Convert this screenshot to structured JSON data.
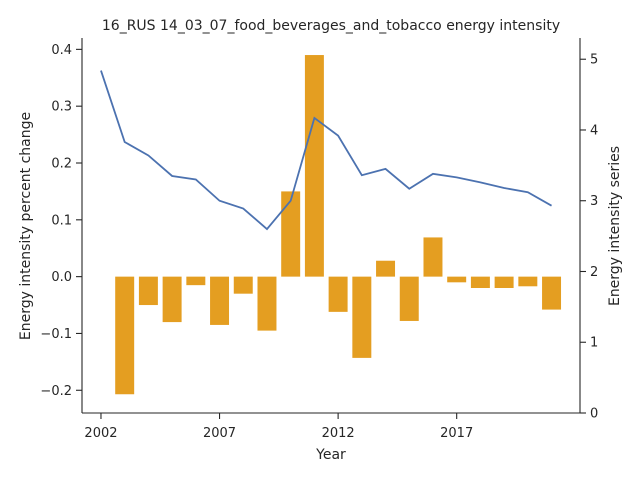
{
  "chart_data": {
    "type": "bar+line",
    "title": "16_RUS 14_03_07_food_beverages_and_tobacco energy intensity",
    "xlabel": "Year",
    "ylabel_left": "Energy intensity percent change",
    "ylabel_right": "Energy intensity series",
    "xlim": [
      2001.2,
      2022.2
    ],
    "ylim_left": [
      -0.24,
      0.42
    ],
    "ylim_right": [
      0,
      5.3
    ],
    "x_ticks": [
      2002,
      2007,
      2012,
      2017
    ],
    "y_ticks_left": [
      -0.2,
      -0.1,
      0.0,
      0.1,
      0.2,
      0.3,
      0.4
    ],
    "y_tick_labels_left": [
      "−0.2",
      "−0.1",
      "0.0",
      "0.1",
      "0.2",
      "0.3",
      "0.4"
    ],
    "y_ticks_right": [
      0,
      1,
      2,
      3,
      4,
      5
    ],
    "y_tick_labels_right": [
      "0",
      "1",
      "2",
      "3",
      "4",
      "5"
    ],
    "grid": false,
    "bar_series": {
      "axis": "left",
      "color": "#e49e21",
      "x": [
        2003,
        2004,
        2005,
        2006,
        2007,
        2008,
        2009,
        2010,
        2011,
        2012,
        2013,
        2014,
        2015,
        2016,
        2017,
        2018,
        2019,
        2020,
        2021
      ],
      "values": [
        -0.207,
        -0.05,
        -0.08,
        -0.015,
        -0.085,
        -0.03,
        -0.095,
        0.15,
        0.39,
        -0.062,
        -0.143,
        0.028,
        -0.078,
        0.069,
        -0.01,
        -0.02,
        -0.02,
        -0.017,
        -0.058
      ]
    },
    "line_series": {
      "axis": "right",
      "color": "#4c72b0",
      "x": [
        2002,
        2003,
        2004,
        2005,
        2006,
        2007,
        2008,
        2009,
        2010,
        2011,
        2012,
        2013,
        2014,
        2015,
        2016,
        2017,
        2018,
        2019,
        2020,
        2021
      ],
      "values": [
        4.84,
        3.83,
        3.64,
        3.35,
        3.3,
        3.0,
        2.89,
        2.6,
        3.0,
        4.17,
        3.92,
        3.36,
        3.45,
        3.17,
        3.38,
        3.33,
        3.26,
        3.18,
        3.12,
        2.93
      ]
    }
  }
}
